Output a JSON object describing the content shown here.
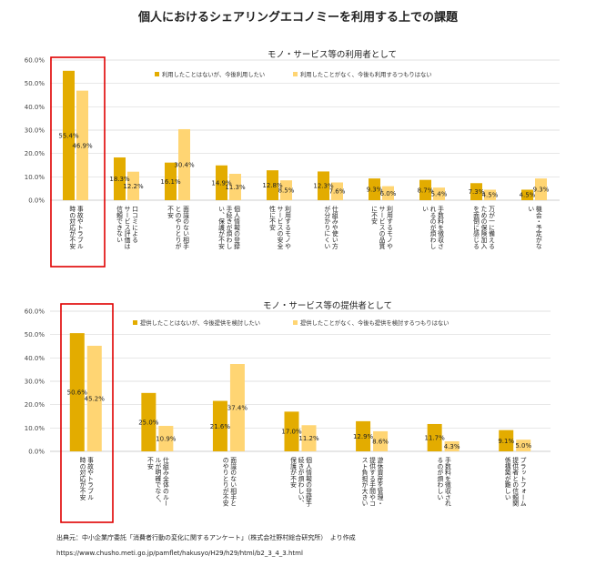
{
  "main_title": "個人におけるシェアリングエコノミーを利用する上での課題",
  "source_line": "出典元：中小企業庁委託「消費者行動の変化に関するアンケート」（株式会社野村総合研究所）　より作成",
  "source_url": "https://www.chusho.meti.go.jp/pamflet/hakusyo/H29/h29/html/b2_3_4_3.html",
  "colors": {
    "series1": "#E3AC00",
    "series2": "#FFD573",
    "highlight": "#E00000",
    "grid": "#D9D9D9"
  },
  "chart_data": [
    {
      "type": "bar",
      "title": "モノ・サービス等の利用者として",
      "ylim": [
        0,
        60
      ],
      "yticks": [
        "0.0%",
        "10.0%",
        "20.0%",
        "30.0%",
        "40.0%",
        "50.0%",
        "60.0%"
      ],
      "grid": true,
      "legend_position": "top",
      "highlighted_category": 0,
      "categories": [
        [
          "事故やトラブル",
          "時の対応が不安"
        ],
        [
          "口コミによる",
          "サービス評価は",
          "信頼できない"
        ],
        [
          "面識のない相手",
          "とのやりとりが",
          "不安"
        ],
        [
          "個人情報の登録",
          "手続きが煩わし",
          "い、保護が不安"
        ],
        [
          "利用するモノや",
          "サービスの安全",
          "性に不安"
        ],
        [
          "仕組みや使い方",
          "が分かりにくい"
        ],
        [
          "利用するモノや",
          "サービスの品質",
          "に不安"
        ],
        [
          "手数料を徴収さ",
          "れるのが煩わし",
          "い"
        ],
        [
          "万が一に備える",
          "ための保険加入",
          "を面倒に感じる"
        ],
        [
          "機会・予定がな",
          "い"
        ]
      ],
      "series": [
        {
          "name": "利用したことはないが、今後利用したい",
          "values": [
            55.4,
            18.3,
            16.1,
            14.9,
            12.8,
            12.3,
            9.3,
            8.7,
            7.3,
            4.5
          ],
          "labels": [
            "55.4%",
            "18.3%",
            "16.1%",
            "14.9%",
            "12.8%",
            "12.3%",
            "9.3%",
            "8.7%",
            "7.3%",
            "4.5%"
          ]
        },
        {
          "name": "利用したことがなく、今後も利用するつもりはない",
          "values": [
            46.9,
            12.2,
            30.4,
            11.3,
            8.5,
            7.6,
            6.0,
            5.4,
            4.5,
            9.3
          ],
          "labels": [
            "46.9%",
            "12.2%",
            "30.4%",
            "11.3%",
            "8.5%",
            "7.6%",
            "6.0%",
            "5.4%",
            "4.5%",
            "9.3%"
          ]
        }
      ]
    },
    {
      "type": "bar",
      "title": "モノ・サービス等の提供者として",
      "ylim": [
        0,
        60
      ],
      "yticks": [
        "0.0%",
        "10.0%",
        "20.0%",
        "30.0%",
        "40.0%",
        "50.0%",
        "60.0%"
      ],
      "grid": true,
      "legend_position": "top",
      "highlighted_category": 0,
      "categories": [
        [
          "事故やトラブル",
          "時の対応が不安"
        ],
        [
          "仕組み全体のルー",
          "ルが明確でなく、",
          "不安"
        ],
        [
          "面識のない相手と",
          "のやりとりが不安"
        ],
        [
          "個人情報の登録手",
          "続きが煩わしい、",
          "保護が不安"
        ],
        [
          "遊休資産を管理・",
          "提供する手間やコ",
          "スト負担が大きい"
        ],
        [
          "手数料を徴収され",
          "るのが煩わしい"
        ],
        [
          "プラットフォーム",
          "提供者との信頼関",
          "係構築が難しい"
        ]
      ],
      "series": [
        {
          "name": "提供したことはないが、今後提供を検討したい",
          "values": [
            50.6,
            25.0,
            21.6,
            17.0,
            12.9,
            11.7,
            9.1
          ],
          "labels": [
            "50.6%",
            "25.0%",
            "21.6%",
            "17.0%",
            "12.9%",
            "11.7%",
            "9.1%"
          ]
        },
        {
          "name": "提供したことがなく、今後も提供を検討するつもりはない",
          "values": [
            45.2,
            10.9,
            37.4,
            11.2,
            8.6,
            4.3,
            5.0
          ],
          "labels": [
            "45.2%",
            "10.9%",
            "37.4%",
            "11.2%",
            "8.6%",
            "4.3%",
            "5.0%"
          ]
        }
      ]
    }
  ]
}
